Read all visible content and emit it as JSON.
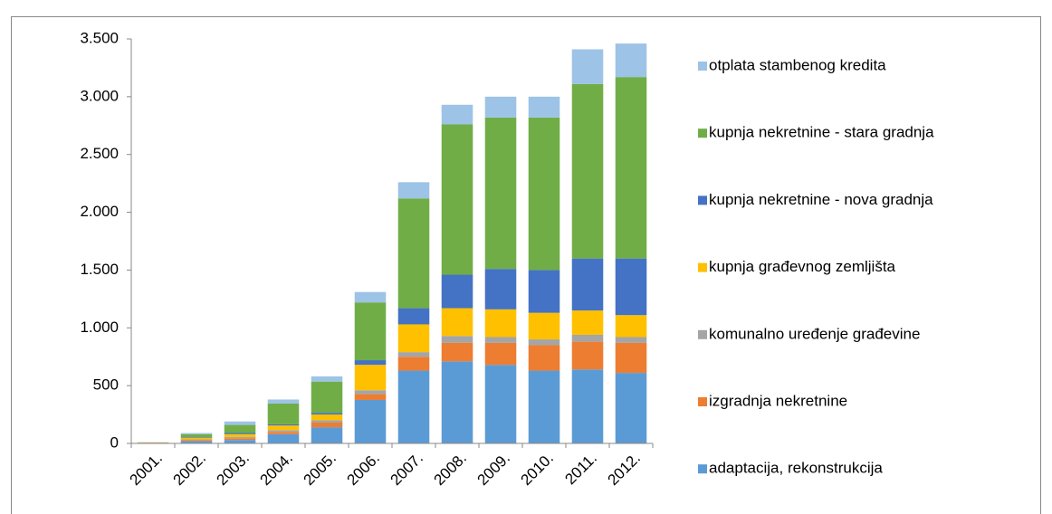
{
  "chart_data": {
    "type": "bar",
    "stacked": true,
    "categories": [
      "2001.",
      "2002.",
      "2003.",
      "2004.",
      "2005.",
      "2006.",
      "2007.",
      "2008.",
      "2009.",
      "2010.",
      "2011.",
      "2012."
    ],
    "series": [
      {
        "name": "adaptacija, rekonstrukcija",
        "color": "#5b9bd5",
        "values": [
          5,
          20,
          30,
          80,
          140,
          376,
          630,
          710,
          680,
          630,
          640,
          610
        ]
      },
      {
        "name": "izgradnja nekretnine",
        "color": "#ed7d31",
        "values": [
          2,
          10,
          15,
          20,
          40,
          50,
          120,
          160,
          190,
          220,
          240,
          260
        ]
      },
      {
        "name": "komunalno uređenje građevine",
        "color": "#a5a5a5",
        "values": [
          1,
          5,
          10,
          15,
          20,
          34,
          40,
          60,
          50,
          50,
          60,
          50
        ]
      },
      {
        "name": "kupnja građevnog zemljišta",
        "color": "#ffc000",
        "values": [
          1,
          15,
          25,
          40,
          50,
          220,
          240,
          240,
          240,
          230,
          210,
          190
        ]
      },
      {
        "name": "kupnja nekretnine - nova gradnja",
        "color": "#4472c4",
        "values": [
          0,
          5,
          10,
          10,
          15,
          40,
          140,
          290,
          350,
          370,
          450,
          490
        ]
      },
      {
        "name": "kupnja nekretnine - stara gradnja",
        "color": "#70ad47",
        "values": [
          1,
          25,
          70,
          180,
          270,
          500,
          950,
          1300,
          1310,
          1320,
          1510,
          1570
        ]
      },
      {
        "name": "otplata stambenog kredita",
        "color": "#9dc3e6",
        "values": [
          0,
          10,
          30,
          35,
          45,
          90,
          140,
          170,
          180,
          180,
          300,
          290
        ]
      }
    ],
    "ylim": [
      0,
      3500
    ],
    "yticks": [
      0,
      500,
      {
        "value": 1000,
        "label": "1.000"
      },
      {
        "value": 1500,
        "label": "1.500"
      },
      {
        "value": 2000,
        "label": "2.000"
      },
      {
        "value": 2500,
        "label": "2.500"
      },
      {
        "value": 3000,
        "label": "3.000"
      },
      {
        "value": 3500,
        "label": "3.500"
      }
    ],
    "legend": "right"
  }
}
